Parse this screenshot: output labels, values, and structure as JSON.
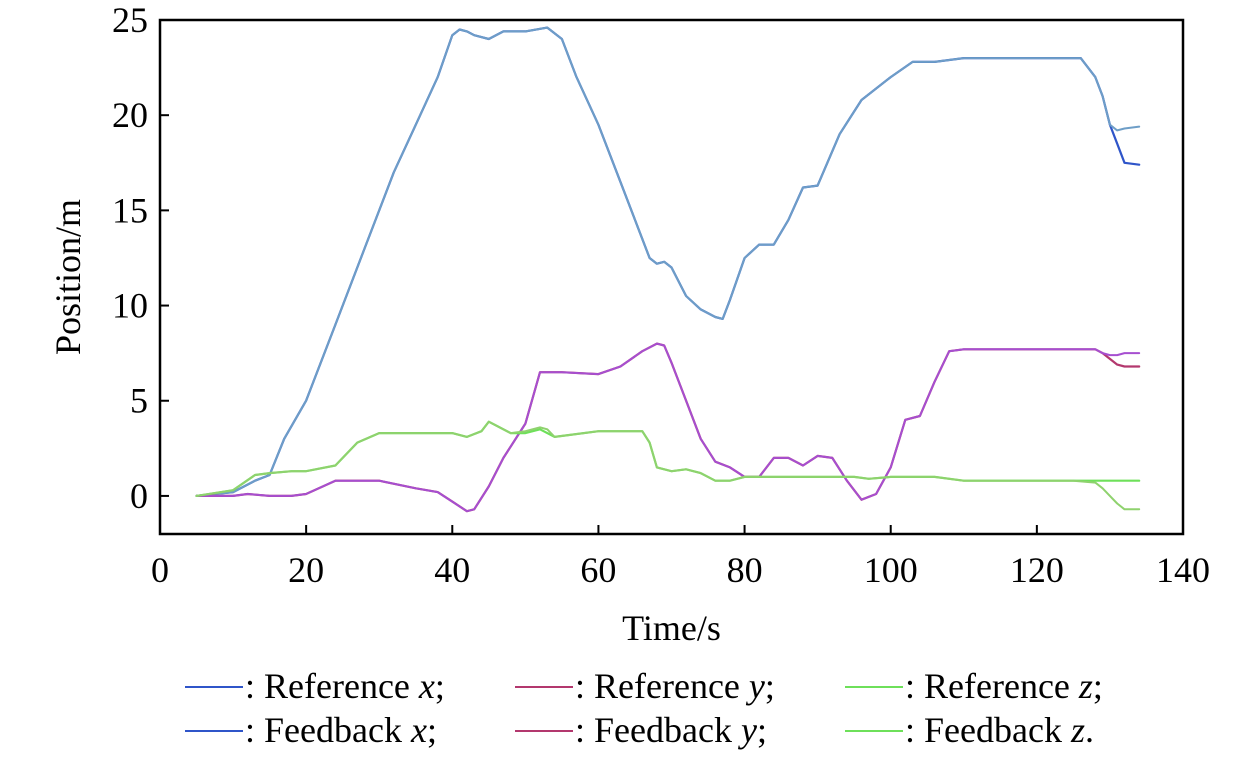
{
  "chart_data": {
    "type": "line",
    "title": "",
    "xlabel": "Time/s",
    "ylabel": "Position/m",
    "xlim": [
      0,
      140
    ],
    "ylim": [
      -2,
      25
    ],
    "xticks": [
      0,
      20,
      40,
      60,
      80,
      100,
      120,
      140
    ],
    "yticks": [
      0,
      5,
      10,
      15,
      20,
      25
    ],
    "xtick_labels": [
      "0",
      "20",
      "40",
      "60",
      "80",
      "100",
      "120",
      "140"
    ],
    "ytick_labels": [
      "0",
      "5",
      "10",
      "15",
      "20",
      "25"
    ],
    "grid": false,
    "legend_position": "bottom",
    "series": [
      {
        "name": "Reference x",
        "label": "Reference",
        "var": "x",
        "end": ";",
        "color": "#2f55c9",
        "width": 2.2,
        "x": [
          5,
          10,
          13,
          15,
          17,
          20,
          24,
          28,
          32,
          35,
          38,
          40,
          41,
          42,
          43,
          45,
          47,
          50,
          53,
          55,
          57,
          60,
          63,
          65,
          67,
          68,
          69,
          70,
          72,
          74,
          76,
          77,
          78,
          80,
          82,
          84,
          86,
          88,
          90,
          93,
          96,
          100,
          103,
          106,
          110,
          115,
          120,
          126,
          128,
          129,
          130,
          131,
          132,
          134
        ],
        "y": [
          0,
          0.2,
          0.8,
          1.1,
          3.0,
          5.0,
          9.0,
          13.0,
          17.0,
          19.5,
          22.0,
          24.2,
          24.5,
          24.4,
          24.2,
          24.0,
          24.4,
          24.4,
          24.6,
          24.0,
          22.0,
          19.5,
          16.5,
          14.5,
          12.5,
          12.2,
          12.3,
          12.0,
          10.5,
          9.8,
          9.4,
          9.3,
          10.3,
          12.5,
          13.2,
          13.2,
          14.5,
          16.2,
          16.3,
          19.0,
          20.8,
          22.0,
          22.8,
          22.8,
          23.0,
          23.0,
          23.0,
          23.0,
          22.0,
          21.0,
          19.5,
          18.5,
          17.5,
          17.4
        ]
      },
      {
        "name": "Feedback x",
        "label": "Feedback",
        "var": "x",
        "end": ";",
        "color": "#6e9ec7",
        "width": 2.0,
        "x": [
          5,
          10,
          13,
          15,
          17,
          20,
          24,
          28,
          32,
          35,
          38,
          40,
          41,
          42,
          43,
          45,
          47,
          50,
          53,
          55,
          57,
          60,
          63,
          65,
          67,
          68,
          69,
          70,
          72,
          74,
          76,
          77,
          78,
          80,
          82,
          84,
          86,
          88,
          90,
          93,
          96,
          100,
          103,
          106,
          110,
          115,
          120,
          126,
          128,
          129,
          130,
          131,
          132,
          134
        ],
        "y": [
          0,
          0.2,
          0.8,
          1.1,
          3.0,
          5.0,
          9.0,
          13.0,
          17.0,
          19.5,
          22.0,
          24.2,
          24.5,
          24.4,
          24.2,
          24.0,
          24.4,
          24.4,
          24.6,
          24.0,
          22.0,
          19.5,
          16.5,
          14.5,
          12.5,
          12.2,
          12.3,
          12.0,
          10.5,
          9.8,
          9.4,
          9.3,
          10.3,
          12.5,
          13.2,
          13.2,
          14.5,
          16.2,
          16.3,
          19.0,
          20.8,
          22.0,
          22.8,
          22.8,
          23.0,
          23.0,
          23.0,
          23.0,
          22.0,
          21.0,
          19.5,
          19.2,
          19.3,
          19.4
        ]
      },
      {
        "name": "Reference y",
        "label": "Reference",
        "var": "y",
        "end": ";",
        "color": "#b3386e",
        "width": 2.2,
        "x": [
          5,
          10,
          12,
          15,
          18,
          20,
          24,
          30,
          35,
          38,
          40,
          42,
          43,
          45,
          47,
          50,
          52,
          55,
          60,
          63,
          66,
          68,
          69,
          70,
          72,
          74,
          76,
          78,
          80,
          82,
          84,
          86,
          88,
          90,
          92,
          94,
          96,
          98,
          100,
          102,
          104,
          106,
          108,
          110,
          115,
          120,
          127,
          128,
          129,
          130,
          131,
          132,
          134
        ],
        "y": [
          0,
          0,
          0.1,
          0,
          0,
          0.1,
          0.8,
          0.8,
          0.4,
          0.2,
          -0.3,
          -0.8,
          -0.7,
          0.5,
          2.0,
          3.8,
          6.5,
          6.5,
          6.4,
          6.8,
          7.6,
          8.0,
          7.9,
          7.0,
          5.0,
          3.0,
          1.8,
          1.5,
          1.0,
          1.0,
          2.0,
          2.0,
          1.6,
          2.1,
          2.0,
          0.8,
          -0.2,
          0.1,
          1.5,
          4.0,
          4.2,
          6.0,
          7.6,
          7.7,
          7.7,
          7.7,
          7.7,
          7.7,
          7.5,
          7.2,
          6.9,
          6.8,
          6.8
        ]
      },
      {
        "name": "Feedback y",
        "label": "Feedback",
        "var": "y",
        "end": ";",
        "color": "#a64fd0",
        "width": 2.0,
        "x": [
          5,
          10,
          12,
          15,
          18,
          20,
          24,
          30,
          35,
          38,
          40,
          42,
          43,
          45,
          47,
          50,
          52,
          55,
          60,
          63,
          66,
          68,
          69,
          70,
          72,
          74,
          76,
          78,
          80,
          82,
          84,
          86,
          88,
          90,
          92,
          94,
          96,
          98,
          100,
          102,
          104,
          106,
          108,
          110,
          115,
          120,
          127,
          128,
          129,
          130,
          131,
          132,
          134
        ],
        "y": [
          0,
          0,
          0.1,
          0,
          0,
          0.1,
          0.8,
          0.8,
          0.4,
          0.2,
          -0.3,
          -0.8,
          -0.7,
          0.5,
          2.0,
          3.8,
          6.5,
          6.5,
          6.4,
          6.8,
          7.6,
          8.0,
          7.9,
          7.0,
          5.0,
          3.0,
          1.8,
          1.5,
          1.0,
          1.0,
          2.0,
          2.0,
          1.6,
          2.1,
          2.0,
          0.8,
          -0.2,
          0.1,
          1.5,
          4.0,
          4.2,
          6.0,
          7.6,
          7.7,
          7.7,
          7.7,
          7.7,
          7.7,
          7.5,
          7.4,
          7.4,
          7.5,
          7.5
        ]
      },
      {
        "name": "Reference z",
        "label": "Reference",
        "var": "z",
        "end": ";",
        "color": "#6ee05a",
        "width": 2.2,
        "x": [
          5,
          10,
          13,
          15,
          18,
          20,
          24,
          27,
          30,
          35,
          40,
          42,
          44,
          45,
          46,
          48,
          50,
          52,
          54,
          56,
          60,
          63,
          66,
          67,
          68,
          70,
          72,
          74,
          76,
          78,
          80,
          85,
          90,
          95,
          97,
          100,
          103,
          106,
          110,
          115,
          120,
          125,
          134
        ],
        "y": [
          0,
          0.3,
          1.1,
          1.2,
          1.3,
          1.3,
          1.6,
          2.8,
          3.3,
          3.3,
          3.3,
          3.1,
          3.4,
          3.9,
          3.7,
          3.3,
          3.3,
          3.5,
          3.1,
          3.2,
          3.4,
          3.4,
          3.4,
          2.8,
          1.5,
          1.3,
          1.4,
          1.2,
          0.8,
          0.8,
          1.0,
          1.0,
          1.0,
          1.0,
          0.9,
          1.0,
          1.0,
          1.0,
          0.8,
          0.8,
          0.8,
          0.8,
          0.8
        ]
      },
      {
        "name": "Feedback z",
        "label": "Feedback",
        "var": "z",
        "end": ".",
        "color": "#8fd26e",
        "width": 2.0,
        "x": [
          5,
          10,
          13,
          15,
          18,
          20,
          24,
          27,
          30,
          35,
          40,
          42,
          44,
          45,
          46,
          48,
          50,
          52,
          53,
          54,
          56,
          60,
          63,
          66,
          67,
          68,
          70,
          72,
          74,
          76,
          78,
          80,
          85,
          90,
          95,
          97,
          100,
          103,
          106,
          110,
          115,
          120,
          125,
          128,
          129,
          130,
          131,
          132,
          134
        ],
        "y": [
          0,
          0.3,
          1.1,
          1.2,
          1.3,
          1.3,
          1.6,
          2.8,
          3.3,
          3.3,
          3.3,
          3.1,
          3.4,
          3.9,
          3.7,
          3.3,
          3.4,
          3.6,
          3.5,
          3.1,
          3.2,
          3.4,
          3.4,
          3.4,
          2.8,
          1.5,
          1.3,
          1.4,
          1.2,
          0.8,
          0.8,
          1.0,
          1.0,
          1.0,
          1.0,
          0.9,
          1.0,
          1.0,
          1.0,
          0.8,
          0.8,
          0.8,
          0.8,
          0.7,
          0.4,
          0.0,
          -0.4,
          -0.7,
          -0.7
        ]
      }
    ]
  }
}
